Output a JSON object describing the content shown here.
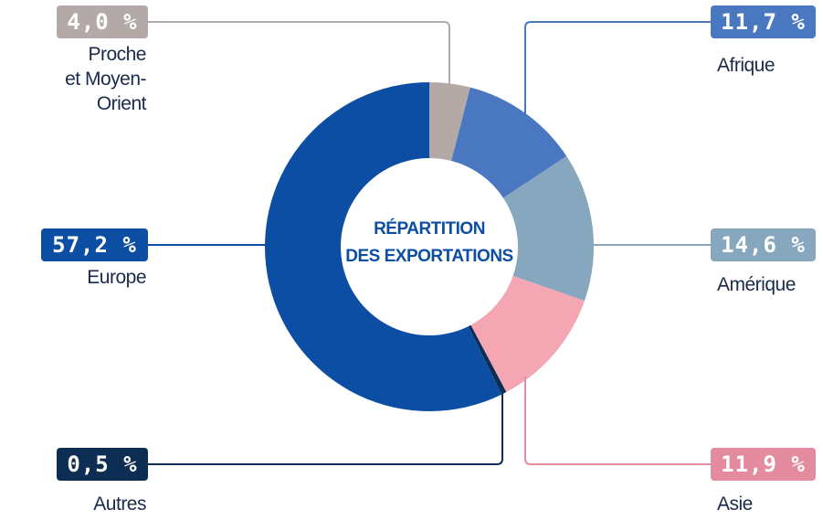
{
  "chart_data": {
    "type": "donut",
    "title": "RÉPARTITION\nDES EXPORTATIONS",
    "categories": [
      "Proche\net Moyen-Orient",
      "Afrique",
      "Amérique",
      "Asie",
      "Autres",
      "Europe"
    ],
    "values": [
      4.0,
      11.7,
      14.6,
      11.9,
      0.5,
      57.2
    ],
    "value_labels": [
      "4,0 %",
      "11,7 %",
      "14,6 %",
      "11,9 %",
      "0,5 %",
      "57,2 %"
    ],
    "colors": [
      "#b3a9a6",
      "#4a78c0",
      "#86a7be",
      "#f4a6b3",
      "#0d2e52",
      "#0c4ea3"
    ],
    "badge_colors": [
      "#b3a9a6",
      "#4a78c0",
      "#86a7be",
      "#e48ba0",
      "#0d2e52",
      "#0c4ea3"
    ]
  }
}
